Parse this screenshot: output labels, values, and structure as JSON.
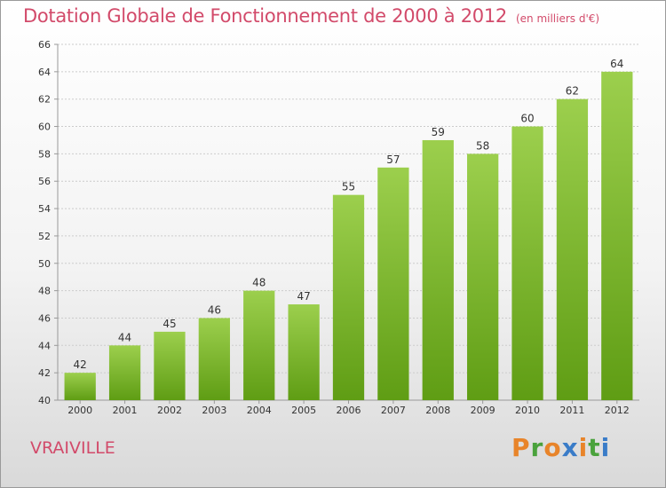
{
  "page": {
    "title": "Dotation Globale de Fonctionnement de 2000 à 2012",
    "unit": "(en milliers d'€)",
    "commune": "VRAIVILLE",
    "brand": [
      "P",
      "r",
      "o",
      "x",
      "i",
      "t",
      "i"
    ],
    "brand_colors": [
      "#e8842a",
      "#4aa23c",
      "#e8842a",
      "#3a7cc8",
      "#e8842a",
      "#4aa23c",
      "#3a7cc8"
    ]
  },
  "chart_data": {
    "type": "bar",
    "title": "Dotation Globale de Fonctionnement de 2000 à 2012",
    "subtitle": "(en milliers d'€)",
    "xlabel": "",
    "ylabel": "",
    "categories": [
      "2000",
      "2001",
      "2002",
      "2003",
      "2004",
      "2005",
      "2006",
      "2007",
      "2008",
      "2009",
      "2010",
      "2011",
      "2012"
    ],
    "values": [
      42,
      44,
      45,
      46,
      48,
      47,
      55,
      57,
      59,
      58,
      60,
      62,
      64
    ],
    "ylim": [
      40,
      66
    ],
    "yticks": [
      40,
      42,
      44,
      46,
      48,
      50,
      52,
      54,
      56,
      58,
      60,
      62,
      64,
      66
    ],
    "grid": true,
    "colors": {
      "bar_top": "#9ccf4d",
      "bar_bottom": "#5f9d14",
      "grid": "#cccccc",
      "axis": "#999999"
    }
  }
}
